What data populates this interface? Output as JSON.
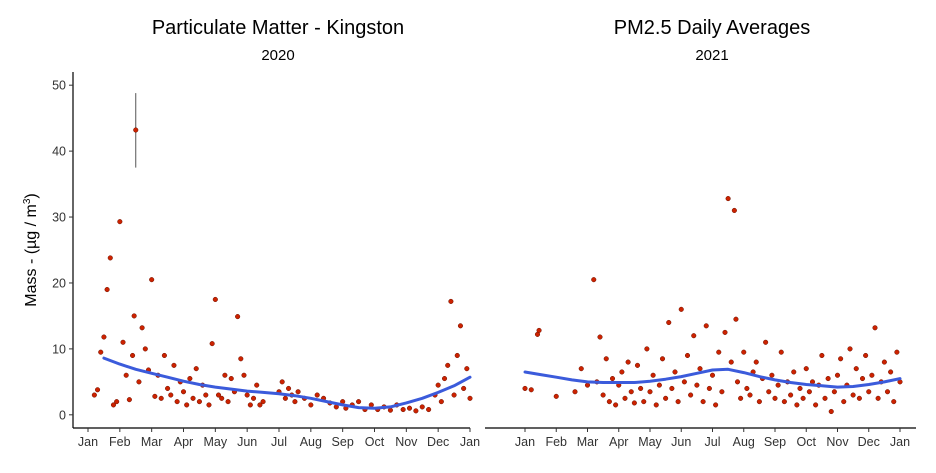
{
  "chart_data": [
    {
      "type": "scatter",
      "title": "Particulate Matter - Kingston",
      "subtitle": "2020",
      "ylabel": "Mass - (µg / m³)",
      "ylabel_prefix": "Mass - (µg / m",
      "ylabel_sup": "3",
      "ylabel_suffix": ")",
      "ylim": [
        -2,
        52
      ],
      "yticks": [
        0,
        10,
        20,
        30,
        40,
        50
      ],
      "xticks": [
        "Jan",
        "Feb",
        "Mar",
        "Apr",
        "May",
        "Jun",
        "Jul",
        "Aug",
        "Sep",
        "Oct",
        "Nov",
        "Dec",
        "Jan"
      ],
      "grid": false,
      "point_color": "#cc2200",
      "smooth_color": "#3b5bdb",
      "series": [
        {
          "kind": "points",
          "points": [
            [
              1.2,
              3.0
            ],
            [
              1.3,
              3.8
            ],
            [
              1.4,
              9.5
            ],
            [
              1.5,
              11.8
            ],
            [
              1.6,
              19.0
            ],
            [
              1.7,
              23.8
            ],
            [
              1.8,
              1.5
            ],
            [
              1.9,
              2.0
            ],
            [
              2.0,
              29.3
            ],
            [
              2.1,
              11.0
            ],
            [
              2.2,
              6.0
            ],
            [
              2.3,
              2.3
            ],
            [
              2.4,
              9.0
            ],
            [
              2.45,
              15.0
            ],
            [
              2.5,
              43.2
            ],
            [
              2.6,
              5.0
            ],
            [
              2.7,
              13.2
            ],
            [
              2.8,
              10.0
            ],
            [
              2.9,
              6.8
            ],
            [
              3.0,
              20.5
            ],
            [
              3.1,
              2.8
            ],
            [
              3.2,
              6.0
            ],
            [
              3.3,
              2.5
            ],
            [
              3.4,
              9.0
            ],
            [
              3.5,
              4.0
            ],
            [
              3.6,
              3.0
            ],
            [
              3.7,
              7.5
            ],
            [
              3.8,
              2.0
            ],
            [
              3.9,
              5.0
            ],
            [
              4.0,
              3.5
            ],
            [
              4.1,
              1.5
            ],
            [
              4.2,
              5.5
            ],
            [
              4.3,
              2.5
            ],
            [
              4.4,
              7.0
            ],
            [
              4.5,
              2.0
            ],
            [
              4.6,
              4.5
            ],
            [
              4.7,
              3.0
            ],
            [
              4.8,
              1.5
            ],
            [
              4.9,
              10.8
            ],
            [
              5.0,
              17.5
            ],
            [
              5.1,
              3.0
            ],
            [
              5.2,
              2.5
            ],
            [
              5.3,
              6.0
            ],
            [
              5.4,
              2.0
            ],
            [
              5.5,
              5.5
            ],
            [
              5.6,
              3.5
            ],
            [
              5.7,
              14.9
            ],
            [
              5.8,
              8.5
            ],
            [
              5.9,
              6.0
            ],
            [
              6.0,
              3.0
            ],
            [
              6.1,
              1.5
            ],
            [
              6.2,
              2.5
            ],
            [
              6.3,
              4.5
            ],
            [
              6.4,
              1.5
            ],
            [
              6.5,
              2.0
            ],
            [
              7.0,
              3.5
            ],
            [
              7.1,
              5.0
            ],
            [
              7.2,
              2.5
            ],
            [
              7.3,
              4.0
            ],
            [
              7.4,
              3.0
            ],
            [
              7.5,
              2.0
            ],
            [
              7.6,
              3.5
            ],
            [
              7.8,
              2.5
            ],
            [
              8.0,
              1.5
            ],
            [
              8.2,
              3.0
            ],
            [
              8.4,
              2.5
            ],
            [
              8.6,
              1.8
            ],
            [
              8.8,
              1.2
            ],
            [
              9.0,
              2.0
            ],
            [
              9.1,
              1.0
            ],
            [
              9.3,
              1.5
            ],
            [
              9.5,
              2.0
            ],
            [
              9.7,
              0.8
            ],
            [
              9.9,
              1.5
            ],
            [
              10.1,
              0.8
            ],
            [
              10.3,
              1.2
            ],
            [
              10.5,
              0.7
            ],
            [
              10.7,
              1.5
            ],
            [
              10.9,
              0.8
            ],
            [
              11.1,
              1.0
            ],
            [
              11.3,
              0.6
            ],
            [
              11.5,
              1.2
            ],
            [
              11.7,
              0.8
            ],
            [
              11.9,
              3.0
            ],
            [
              12.0,
              4.5
            ],
            [
              12.1,
              2.0
            ],
            [
              12.2,
              5.5
            ],
            [
              12.3,
              7.5
            ],
            [
              12.4,
              17.2
            ],
            [
              12.5,
              3.0
            ],
            [
              12.6,
              9.0
            ],
            [
              12.7,
              13.5
            ],
            [
              12.8,
              4.0
            ],
            [
              12.9,
              7.0
            ],
            [
              13.0,
              2.5
            ]
          ],
          "error_bar": {
            "x": 2.5,
            "low": 37.5,
            "high": 48.8
          }
        },
        {
          "kind": "smooth",
          "points": [
            [
              1.5,
              8.6
            ],
            [
              2.0,
              7.7
            ],
            [
              2.5,
              6.9
            ],
            [
              3.0,
              6.3
            ],
            [
              3.5,
              5.7
            ],
            [
              4.0,
              5.1
            ],
            [
              4.5,
              4.6
            ],
            [
              5.0,
              4.2
            ],
            [
              5.5,
              3.9
            ],
            [
              6.0,
              3.6
            ],
            [
              6.5,
              3.4
            ],
            [
              7.0,
              3.2
            ],
            [
              7.5,
              2.9
            ],
            [
              8.0,
              2.5
            ],
            [
              8.5,
              2.0
            ],
            [
              9.0,
              1.5
            ],
            [
              9.5,
              1.1
            ],
            [
              10.0,
              1.0
            ],
            [
              10.5,
              1.2
            ],
            [
              11.0,
              1.8
            ],
            [
              11.5,
              2.5
            ],
            [
              12.0,
              3.4
            ],
            [
              12.5,
              4.4
            ],
            [
              13.0,
              5.7
            ]
          ]
        }
      ]
    },
    {
      "type": "scatter",
      "title": "PM2.5 Daily Averages",
      "subtitle": "2021",
      "ylim": [
        -2,
        52
      ],
      "xticks": [
        "Jan",
        "Feb",
        "Mar",
        "Apr",
        "May",
        "Jun",
        "Jul",
        "Aug",
        "Sep",
        "Oct",
        "Nov",
        "Dec",
        "Jan"
      ],
      "grid": false,
      "point_color": "#cc2200",
      "smooth_color": "#3b5bdb",
      "series": [
        {
          "kind": "points",
          "points": [
            [
              1.0,
              4.0
            ],
            [
              1.2,
              3.8
            ],
            [
              1.4,
              12.2
            ],
            [
              1.45,
              12.8
            ],
            [
              2.0,
              2.8
            ],
            [
              2.6,
              3.5
            ],
            [
              2.8,
              7.0
            ],
            [
              3.0,
              4.5
            ],
            [
              3.2,
              20.5
            ],
            [
              3.3,
              5.0
            ],
            [
              3.4,
              11.8
            ],
            [
              3.5,
              3.0
            ],
            [
              3.6,
              8.5
            ],
            [
              3.7,
              2.0
            ],
            [
              3.8,
              5.5
            ],
            [
              3.9,
              1.5
            ],
            [
              4.0,
              4.5
            ],
            [
              4.1,
              6.5
            ],
            [
              4.2,
              2.5
            ],
            [
              4.3,
              8.0
            ],
            [
              4.4,
              3.5
            ],
            [
              4.5,
              1.8
            ],
            [
              4.6,
              7.5
            ],
            [
              4.7,
              4.0
            ],
            [
              4.8,
              2.0
            ],
            [
              4.9,
              10.0
            ],
            [
              5.0,
              3.5
            ],
            [
              5.1,
              6.0
            ],
            [
              5.2,
              1.5
            ],
            [
              5.3,
              4.5
            ],
            [
              5.4,
              8.5
            ],
            [
              5.5,
              2.5
            ],
            [
              5.6,
              14.0
            ],
            [
              5.7,
              4.0
            ],
            [
              5.8,
              6.5
            ],
            [
              5.9,
              2.0
            ],
            [
              6.0,
              16.0
            ],
            [
              6.1,
              5.0
            ],
            [
              6.2,
              9.0
            ],
            [
              6.3,
              3.0
            ],
            [
              6.4,
              12.0
            ],
            [
              6.5,
              4.5
            ],
            [
              6.6,
              7.0
            ],
            [
              6.7,
              2.0
            ],
            [
              6.8,
              13.5
            ],
            [
              6.9,
              4.0
            ],
            [
              7.0,
              6.0
            ],
            [
              7.1,
              1.5
            ],
            [
              7.2,
              9.5
            ],
            [
              7.3,
              3.5
            ],
            [
              7.4,
              12.5
            ],
            [
              7.5,
              32.8
            ],
            [
              7.6,
              8.0
            ],
            [
              7.7,
              31.0
            ],
            [
              7.75,
              14.5
            ],
            [
              7.8,
              5.0
            ],
            [
              7.9,
              2.5
            ],
            [
              8.0,
              9.5
            ],
            [
              8.1,
              4.0
            ],
            [
              8.2,
              3.0
            ],
            [
              8.3,
              6.5
            ],
            [
              8.4,
              8.0
            ],
            [
              8.5,
              2.0
            ],
            [
              8.6,
              5.5
            ],
            [
              8.7,
              11.0
            ],
            [
              8.8,
              3.5
            ],
            [
              8.9,
              6.0
            ],
            [
              9.0,
              2.5
            ],
            [
              9.1,
              4.5
            ],
            [
              9.2,
              9.5
            ],
            [
              9.3,
              2.0
            ],
            [
              9.4,
              5.0
            ],
            [
              9.5,
              3.0
            ],
            [
              9.6,
              6.5
            ],
            [
              9.7,
              1.5
            ],
            [
              9.8,
              4.0
            ],
            [
              9.9,
              2.5
            ],
            [
              10.0,
              7.0
            ],
            [
              10.1,
              3.5
            ],
            [
              10.2,
              5.0
            ],
            [
              10.3,
              1.5
            ],
            [
              10.4,
              4.5
            ],
            [
              10.5,
              9.0
            ],
            [
              10.6,
              2.5
            ],
            [
              10.7,
              5.5
            ],
            [
              10.8,
              0.5
            ],
            [
              10.9,
              3.5
            ],
            [
              11.0,
              6.0
            ],
            [
              11.1,
              8.5
            ],
            [
              11.2,
              2.0
            ],
            [
              11.3,
              4.5
            ],
            [
              11.4,
              10.0
            ],
            [
              11.5,
              3.0
            ],
            [
              11.6,
              7.0
            ],
            [
              11.7,
              2.5
            ],
            [
              11.8,
              5.5
            ],
            [
              11.9,
              9.0
            ],
            [
              12.0,
              3.5
            ],
            [
              12.1,
              6.0
            ],
            [
              12.2,
              13.2
            ],
            [
              12.3,
              2.5
            ],
            [
              12.4,
              5.0
            ],
            [
              12.5,
              8.0
            ],
            [
              12.6,
              3.5
            ],
            [
              12.7,
              6.5
            ],
            [
              12.8,
              2.0
            ],
            [
              12.9,
              9.5
            ],
            [
              13.0,
              5.0
            ]
          ]
        },
        {
          "kind": "smooth",
          "points": [
            [
              1.0,
              6.5
            ],
            [
              1.5,
              6.1
            ],
            [
              2.0,
              5.7
            ],
            [
              2.5,
              5.3
            ],
            [
              3.0,
              5.0
            ],
            [
              3.5,
              4.9
            ],
            [
              4.0,
              4.9
            ],
            [
              4.5,
              4.9
            ],
            [
              5.0,
              5.1
            ],
            [
              5.5,
              5.4
            ],
            [
              6.0,
              5.8
            ],
            [
              6.5,
              6.3
            ],
            [
              7.0,
              6.8
            ],
            [
              7.5,
              6.9
            ],
            [
              8.0,
              6.4
            ],
            [
              8.5,
              5.8
            ],
            [
              9.0,
              5.3
            ],
            [
              9.5,
              4.9
            ],
            [
              10.0,
              4.6
            ],
            [
              10.5,
              4.4
            ],
            [
              11.0,
              4.2
            ],
            [
              11.5,
              4.3
            ],
            [
              12.0,
              4.6
            ],
            [
              12.5,
              5.0
            ],
            [
              13.0,
              5.5
            ]
          ]
        }
      ]
    }
  ]
}
